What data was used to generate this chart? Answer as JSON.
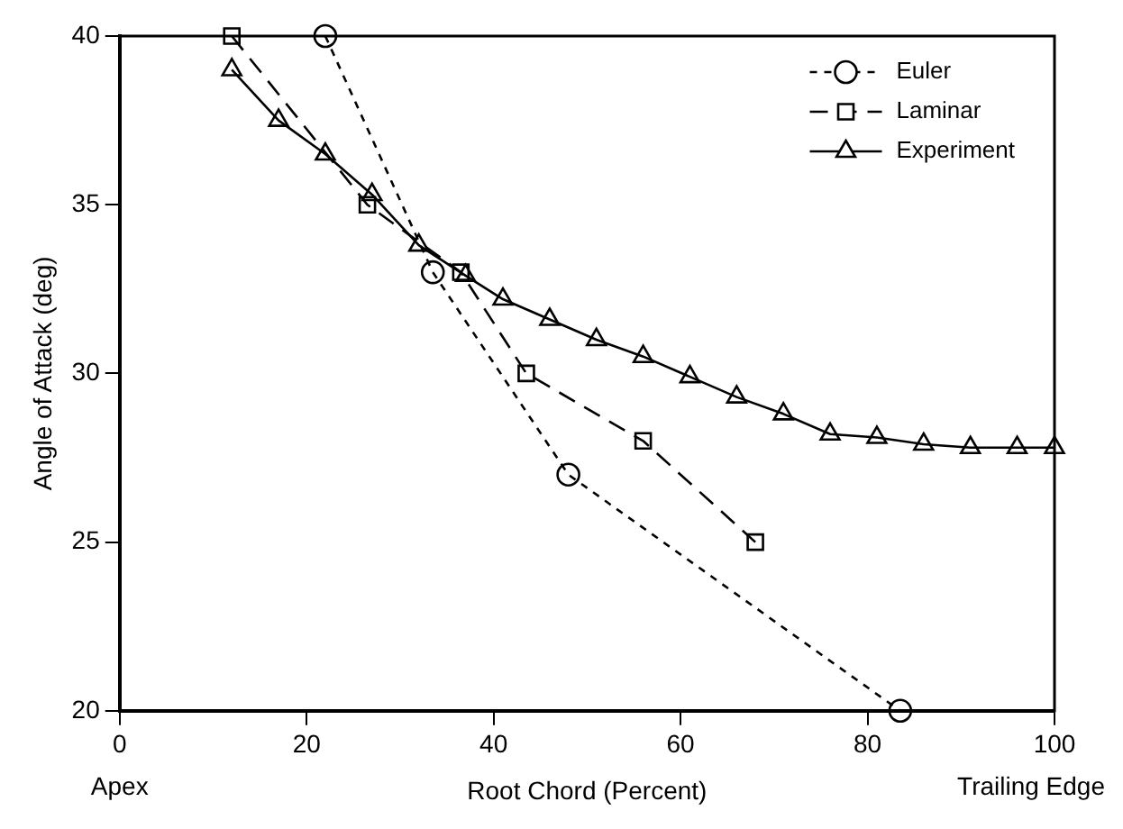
{
  "chart_data": {
    "type": "line",
    "xlabel": "Root Chord (Percent)",
    "ylabel": "Angle of Attack (deg)",
    "xlim": [
      0,
      100
    ],
    "xticks": [
      0,
      20,
      40,
      60,
      80,
      100
    ],
    "ylim": [
      20,
      40
    ],
    "yticks": [
      20,
      25,
      30,
      35,
      40
    ],
    "grid": false,
    "legend": "top right",
    "annotations": [
      "Apex",
      "Trailing Edge"
    ],
    "series": [
      {
        "name": "Euler",
        "color": "#000000",
        "marker": "circle",
        "line_style": "dotted",
        "x": [
          22,
          33.5,
          48,
          83.5
        ],
        "values": [
          40,
          33,
          27,
          20
        ]
      },
      {
        "name": "Laminar",
        "color": "#000000",
        "marker": "square",
        "line_style": "dashed",
        "x": [
          12,
          26.5,
          36.5,
          43.5,
          56,
          68
        ],
        "values": [
          40,
          35,
          33,
          30,
          28,
          25
        ]
      },
      {
        "name": "Experiment",
        "color": "#000000",
        "marker": "triangle",
        "line_style": "solid",
        "x": [
          12,
          17,
          22,
          27,
          32,
          37,
          41,
          46,
          51,
          56,
          61,
          66,
          71,
          76,
          81,
          86,
          91,
          96,
          100
        ],
        "values": [
          39,
          37.5,
          36.5,
          35.3,
          33.8,
          32.9,
          32.2,
          31.6,
          31,
          30.5,
          29.9,
          29.3,
          28.8,
          28.2,
          28.1,
          27.9,
          27.8,
          27.8,
          27.8
        ]
      }
    ]
  }
}
